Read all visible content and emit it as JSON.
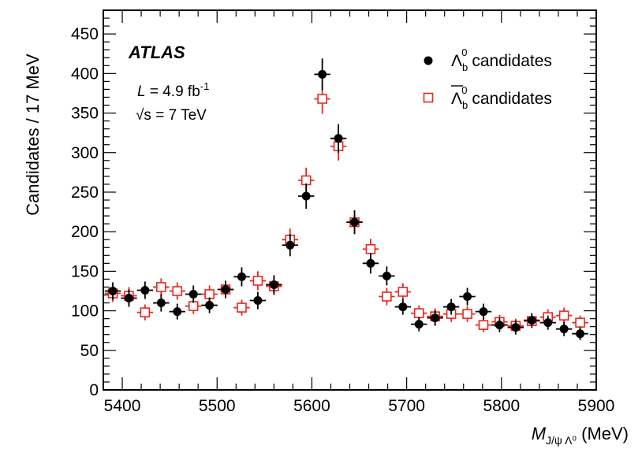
{
  "chart_data": {
    "type": "scatter",
    "title": "",
    "xlabel": "M",
    "xlabel_subscript": "J/ψ Λ⁰",
    "xlabel_unit": " (MeV)",
    "ylabel": "Candidates / 17 MeV",
    "xlim": [
      5380,
      5900
    ],
    "ylim": [
      0,
      480
    ],
    "grid": false,
    "legend_position": "top-right",
    "x_ticks": [
      5400,
      5500,
      5600,
      5700,
      5800,
      5900
    ],
    "y_ticks": [
      0,
      50,
      100,
      150,
      200,
      250,
      300,
      350,
      400,
      450
    ],
    "bin_width": 17,
    "annotations": {
      "experiment": "ATLAS",
      "lumi_prefix": "L",
      "lumi_value": " = 4.9 fb",
      "lumi_exp": "-1",
      "energy_symbol": "√s",
      "energy_value": " = 7 TeV"
    },
    "series": [
      {
        "name": "Λb0 candidates",
        "legend_base": "Λ",
        "legend_sub": "b",
        "legend_sup": "0",
        "legend_text": " candidates",
        "marker": "filled-circle",
        "color": "#000000",
        "x": [
          5390,
          5407,
          5424,
          5441,
          5458,
          5475,
          5492,
          5509,
          5526,
          5543,
          5560,
          5577,
          5594,
          5611,
          5628,
          5645,
          5662,
          5679,
          5696,
          5713,
          5730,
          5747,
          5764,
          5781,
          5798,
          5815,
          5832,
          5849,
          5866,
          5883
        ],
        "y": [
          125,
          116,
          126,
          110,
          99,
          121,
          107,
          127,
          143,
          113,
          133,
          183,
          245,
          399,
          318,
          212,
          160,
          144,
          105,
          83,
          91,
          105,
          118,
          99,
          82,
          79,
          88,
          85,
          77,
          71
        ],
        "err": [
          11,
          11,
          11,
          11,
          10,
          11,
          10,
          11,
          12,
          11,
          12,
          14,
          16,
          20,
          18,
          15,
          13,
          12,
          10,
          9,
          10,
          10,
          11,
          10,
          9,
          9,
          9,
          9,
          9,
          8
        ]
      },
      {
        "name": "anti-Λb0 candidates",
        "legend_base": "Λ",
        "legend_sub": "b",
        "legend_sup": "0",
        "legend_text": " candidates",
        "marker": "open-square",
        "color": "#e8281e",
        "x": [
          5390,
          5407,
          5424,
          5441,
          5458,
          5475,
          5492,
          5509,
          5526,
          5543,
          5560,
          5577,
          5594,
          5611,
          5628,
          5645,
          5662,
          5679,
          5696,
          5713,
          5730,
          5747,
          5764,
          5781,
          5798,
          5815,
          5832,
          5849,
          5866,
          5883
        ],
        "y": [
          122,
          119,
          98,
          130,
          125,
          106,
          121,
          127,
          104,
          138,
          131,
          190,
          265,
          368,
          308,
          212,
          178,
          118,
          124,
          97,
          93,
          96,
          96,
          82,
          86,
          81,
          87,
          92,
          94,
          85
        ],
        "err": [
          11,
          11,
          10,
          11,
          11,
          10,
          11,
          11,
          10,
          12,
          11,
          14,
          16,
          19,
          18,
          15,
          13,
          11,
          11,
          10,
          10,
          10,
          10,
          9,
          9,
          9,
          9,
          10,
          10,
          9
        ]
      }
    ]
  }
}
